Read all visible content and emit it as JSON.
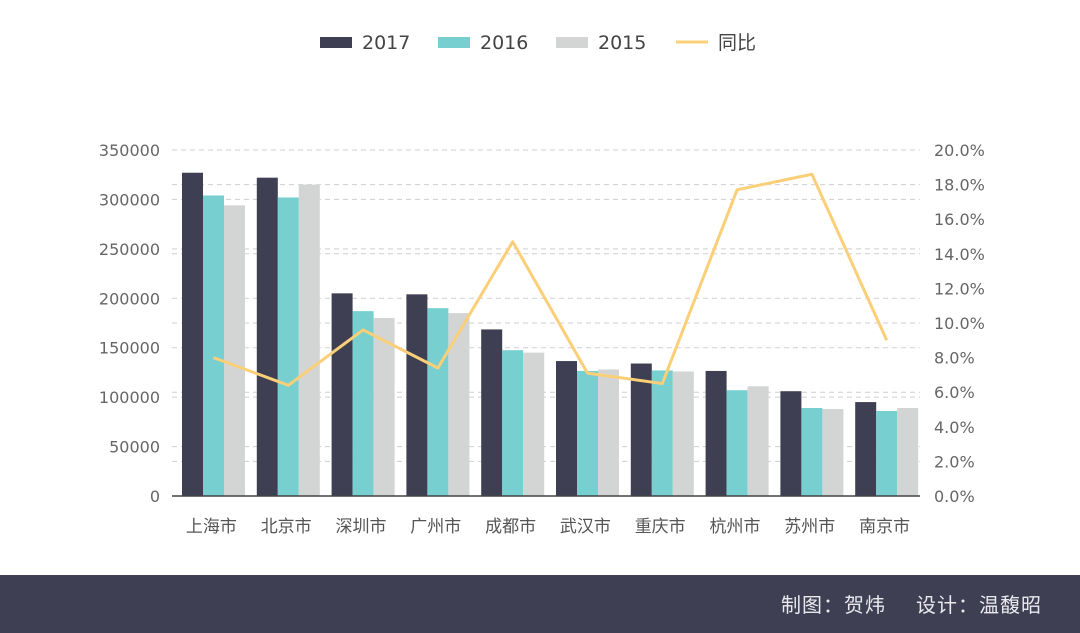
{
  "chart_data": {
    "type": "bar",
    "categories": [
      "上海市",
      "北京市",
      "深圳市",
      "广州市",
      "成都市",
      "武汉市",
      "重庆市",
      "杭州市",
      "苏州市",
      "南京市"
    ],
    "series": [
      {
        "name": "2017",
        "type": "bar",
        "axis": "left",
        "color": "#3f3f53",
        "values": [
          327000,
          322000,
          205000,
          204000,
          168500,
          136500,
          134000,
          126500,
          106000,
          95000
        ]
      },
      {
        "name": "2016",
        "type": "bar",
        "axis": "left",
        "color": "#77cfcf",
        "values": [
          304000,
          302000,
          187000,
          190000,
          147500,
          126500,
          127000,
          107000,
          89000,
          86000
        ]
      },
      {
        "name": "2015",
        "type": "bar",
        "axis": "left",
        "color": "#d2d5d4",
        "values": [
          294000,
          315000,
          180000,
          185000,
          145000,
          128000,
          126000,
          111000,
          88000,
          89000
        ]
      },
      {
        "name": "同比",
        "type": "line",
        "axis": "right",
        "color": "#fbcf78",
        "values": [
          8.0,
          6.4,
          9.6,
          7.4,
          14.7,
          7.1,
          6.5,
          17.7,
          18.6,
          9.0
        ]
      }
    ],
    "y_left": {
      "min": 0,
      "max": 350000,
      "ticks": [
        "0",
        "50000",
        "100000",
        "150000",
        "200000",
        "250000",
        "300000",
        "350000"
      ]
    },
    "y_right": {
      "min": 0,
      "max": 20,
      "ticks": [
        "0.0%",
        "2.0%",
        "4.0%",
        "6.0%",
        "8.0%",
        "10.0%",
        "12.0%",
        "14.0%",
        "16.0%",
        "18.0%",
        "20.0%"
      ]
    },
    "grid": "dashed-horizontal",
    "legend_position": "top-center",
    "title": "",
    "xlabel": "",
    "ylabel": ""
  },
  "footer": {
    "chart_credit": "制图：贺炜",
    "design_credit": "设计：温馥昭"
  }
}
